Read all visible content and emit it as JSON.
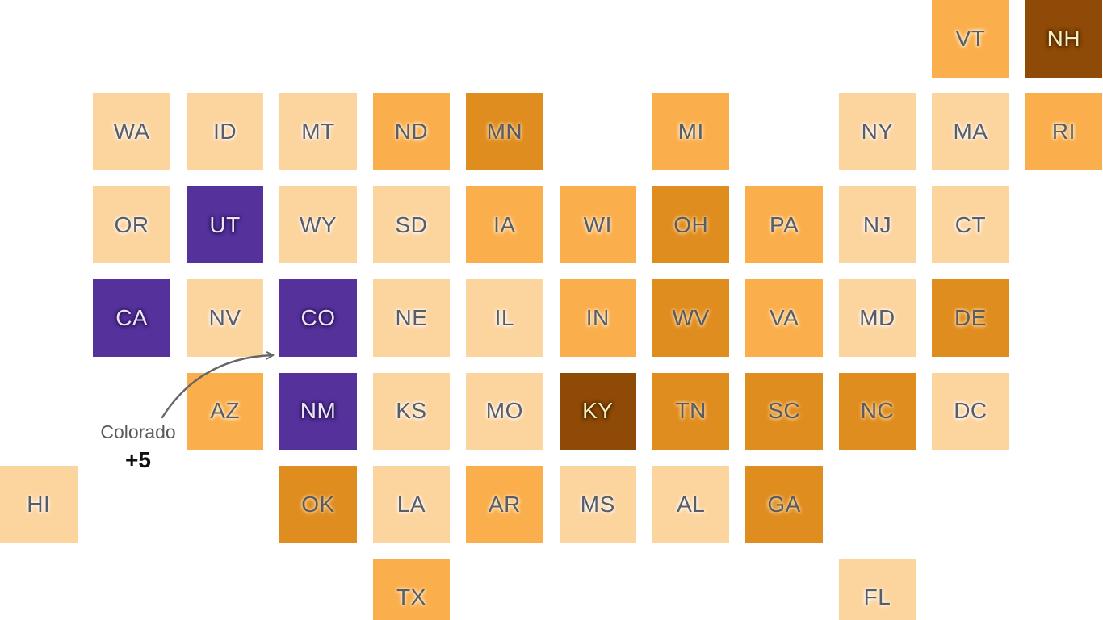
{
  "page": {
    "background": "#ffffff"
  },
  "chart_data": {
    "type": "heatmap",
    "subtype": "us-state-tile-cartogram",
    "title": "",
    "legend": null,
    "grid": {
      "rows": 7,
      "cols": 12,
      "pitch": 115.42,
      "tile_size": 95.5
    },
    "annotation": {
      "target_state": "CO",
      "label": "Colorado",
      "value": "+5",
      "arrow_color": "#666666",
      "arrow_from": [
        201,
        517
      ],
      "arrow_control": [
        248,
        443
      ],
      "arrow_to": [
        338,
        440
      ]
    },
    "color_scale": {
      "light": {
        "bg": "#fcd49e",
        "text": "#585d68",
        "halo": "rgba(255,255,255,0.85)"
      },
      "medium": {
        "bg": "#fbae4c",
        "text": "#585d68",
        "halo": "rgba(255,243,214,0.85)"
      },
      "dark": {
        "bg": "#e08d20",
        "text": "#5a5a60",
        "halo": "rgba(255,222,165,0.75)"
      },
      "brown": {
        "bg": "#8e4a06",
        "text": "#f6efbf",
        "halo": "rgba(66,32,0,0.8)"
      },
      "purple": {
        "bg": "#55329b",
        "text": "#ece4f8",
        "halo": "rgba(34,15,75,0.8)"
      }
    },
    "states": [
      {
        "abbr": "VT",
        "row": 0,
        "col": 10,
        "level": "medium"
      },
      {
        "abbr": "NH",
        "row": 0,
        "col": 11,
        "level": "brown"
      },
      {
        "abbr": "WA",
        "row": 1,
        "col": 1,
        "level": "light"
      },
      {
        "abbr": "ID",
        "row": 1,
        "col": 2,
        "level": "light"
      },
      {
        "abbr": "MT",
        "row": 1,
        "col": 3,
        "level": "light"
      },
      {
        "abbr": "ND",
        "row": 1,
        "col": 4,
        "level": "medium"
      },
      {
        "abbr": "MN",
        "row": 1,
        "col": 5,
        "level": "dark"
      },
      {
        "abbr": "MI",
        "row": 1,
        "col": 7,
        "level": "medium"
      },
      {
        "abbr": "NY",
        "row": 1,
        "col": 9,
        "level": "light"
      },
      {
        "abbr": "MA",
        "row": 1,
        "col": 10,
        "level": "light"
      },
      {
        "abbr": "RI",
        "row": 1,
        "col": 11,
        "level": "medium"
      },
      {
        "abbr": "OR",
        "row": 2,
        "col": 1,
        "level": "light"
      },
      {
        "abbr": "UT",
        "row": 2,
        "col": 2,
        "level": "purple"
      },
      {
        "abbr": "WY",
        "row": 2,
        "col": 3,
        "level": "light"
      },
      {
        "abbr": "SD",
        "row": 2,
        "col": 4,
        "level": "light"
      },
      {
        "abbr": "IA",
        "row": 2,
        "col": 5,
        "level": "medium"
      },
      {
        "abbr": "WI",
        "row": 2,
        "col": 6,
        "level": "medium"
      },
      {
        "abbr": "OH",
        "row": 2,
        "col": 7,
        "level": "dark"
      },
      {
        "abbr": "PA",
        "row": 2,
        "col": 8,
        "level": "medium"
      },
      {
        "abbr": "NJ",
        "row": 2,
        "col": 9,
        "level": "light"
      },
      {
        "abbr": "CT",
        "row": 2,
        "col": 10,
        "level": "light"
      },
      {
        "abbr": "CA",
        "row": 3,
        "col": 1,
        "level": "purple"
      },
      {
        "abbr": "NV",
        "row": 3,
        "col": 2,
        "level": "light"
      },
      {
        "abbr": "CO",
        "row": 3,
        "col": 3,
        "level": "purple"
      },
      {
        "abbr": "NE",
        "row": 3,
        "col": 4,
        "level": "light"
      },
      {
        "abbr": "IL",
        "row": 3,
        "col": 5,
        "level": "light"
      },
      {
        "abbr": "IN",
        "row": 3,
        "col": 6,
        "level": "medium"
      },
      {
        "abbr": "WV",
        "row": 3,
        "col": 7,
        "level": "dark"
      },
      {
        "abbr": "VA",
        "row": 3,
        "col": 8,
        "level": "medium"
      },
      {
        "abbr": "MD",
        "row": 3,
        "col": 9,
        "level": "light"
      },
      {
        "abbr": "DE",
        "row": 3,
        "col": 10,
        "level": "dark"
      },
      {
        "abbr": "AZ",
        "row": 4,
        "col": 2,
        "level": "medium"
      },
      {
        "abbr": "NM",
        "row": 4,
        "col": 3,
        "level": "purple"
      },
      {
        "abbr": "KS",
        "row": 4,
        "col": 4,
        "level": "light"
      },
      {
        "abbr": "MO",
        "row": 4,
        "col": 5,
        "level": "light"
      },
      {
        "abbr": "KY",
        "row": 4,
        "col": 6,
        "level": "brown"
      },
      {
        "abbr": "TN",
        "row": 4,
        "col": 7,
        "level": "dark"
      },
      {
        "abbr": "SC",
        "row": 4,
        "col": 8,
        "level": "dark"
      },
      {
        "abbr": "NC",
        "row": 4,
        "col": 9,
        "level": "dark"
      },
      {
        "abbr": "DC",
        "row": 4,
        "col": 10,
        "level": "light"
      },
      {
        "abbr": "HI",
        "row": 5,
        "col": 0,
        "level": "light"
      },
      {
        "abbr": "OK",
        "row": 5,
        "col": 3,
        "level": "dark"
      },
      {
        "abbr": "LA",
        "row": 5,
        "col": 4,
        "level": "light"
      },
      {
        "abbr": "AR",
        "row": 5,
        "col": 5,
        "level": "medium"
      },
      {
        "abbr": "MS",
        "row": 5,
        "col": 6,
        "level": "light"
      },
      {
        "abbr": "AL",
        "row": 5,
        "col": 7,
        "level": "light"
      },
      {
        "abbr": "GA",
        "row": 5,
        "col": 8,
        "level": "dark"
      },
      {
        "abbr": "TX",
        "row": 6,
        "col": 4,
        "level": "medium"
      },
      {
        "abbr": "FL",
        "row": 6,
        "col": 9,
        "level": "light"
      }
    ]
  }
}
